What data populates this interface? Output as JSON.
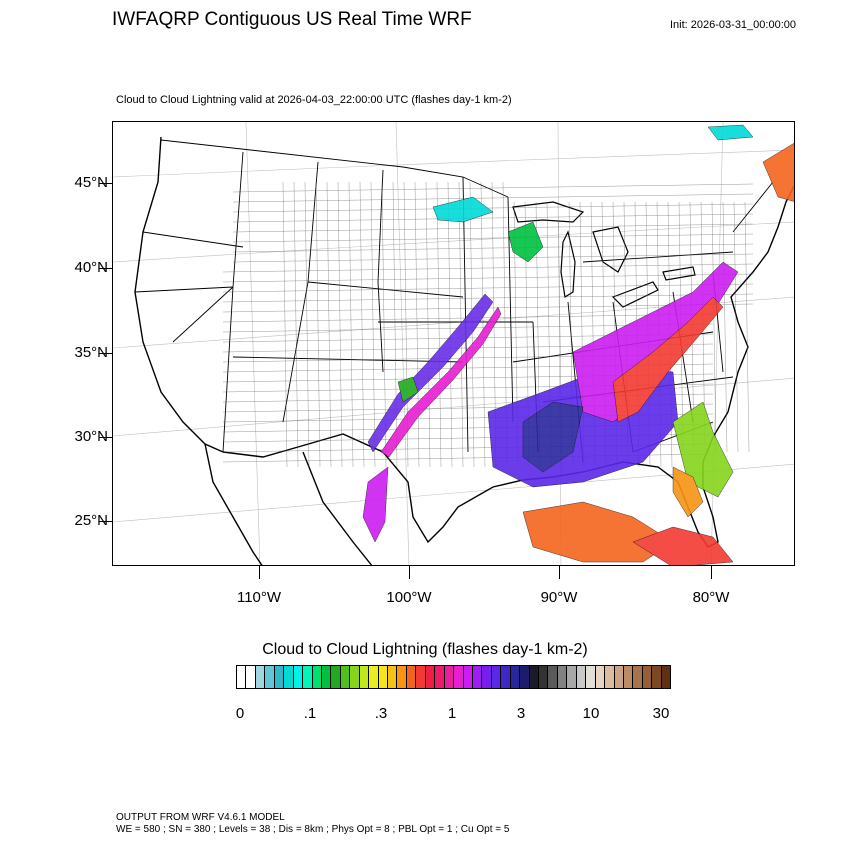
{
  "header": {
    "title": "IWFAQRP Contiguous US Real Time WRF",
    "init": "Init: 2026-03-31_00:00:00",
    "subtitle": "Cloud to Cloud Lightning valid at 2026-04-03_22:00:00 UTC   (flashes day-1 km-2)"
  },
  "map": {
    "lat_labels": [
      "45°N",
      "40°N",
      "35°N",
      "30°N",
      "25°N"
    ],
    "lon_labels": [
      "110°W",
      "100°W",
      "90°W",
      "80°W"
    ],
    "boundary_color": "#000000",
    "graticule_color": "#bfbfbf"
  },
  "colorbar": {
    "title": "Cloud to Cloud Lightning  (flashes day-1 km-2)",
    "labels": [
      "0",
      ".1",
      ".3",
      "1",
      "3",
      "10",
      "30"
    ],
    "colors": [
      "#ffffff",
      "#ffffff",
      "#9fd7df",
      "#62c7d4",
      "#2fb9c8",
      "#00dbd8",
      "#00f2e8",
      "#00f7b8",
      "#00e070",
      "#00c040",
      "#1faa1f",
      "#4cc21c",
      "#86d51c",
      "#c0e81d",
      "#e8ef1e",
      "#f5e61c",
      "#f7c018",
      "#f79414",
      "#f5641e",
      "#f23a32",
      "#f01e46",
      "#ee1a6c",
      "#ec1ea0",
      "#e81ed2",
      "#cc1ef0",
      "#a01ef2",
      "#7a1ef0",
      "#5a28e8",
      "#4028c8",
      "#2a26a0",
      "#1c1c6a",
      "#1a1a2a",
      "#333333",
      "#5a5a5a",
      "#828282",
      "#a8a8a8",
      "#c8c8c8",
      "#e2ddd6",
      "#e8d4c0",
      "#dcbca0",
      "#cca483",
      "#bb8c66",
      "#a8744c",
      "#945e37",
      "#7c4822",
      "#603012"
    ]
  },
  "footer": {
    "model": "OUTPUT FROM WRF V4.6.1 MODEL",
    "options": "WE = 580 ; SN = 380 ; Levels = 38 ; Dis = 8km ; Phys Opt = 8 ; PBL Opt = 1 ; Cu Opt = 5"
  }
}
